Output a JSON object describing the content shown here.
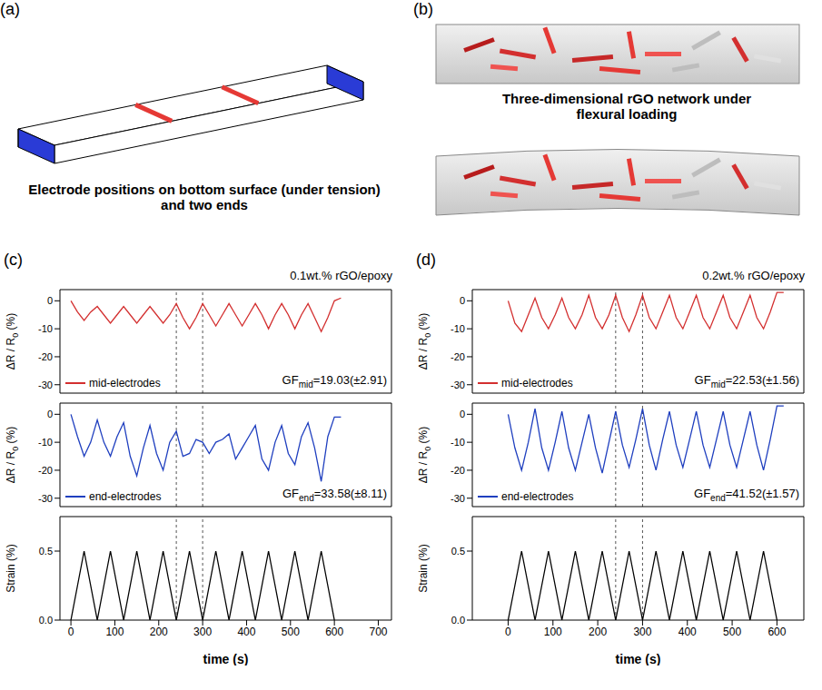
{
  "panels": [
    {
      "label": "(a)",
      "caption": "Electrode positions on bottom surface (under tension) and two ends"
    },
    {
      "label": "(b)",
      "caption": "Three-dimensional rGO network under flexural loading"
    }
  ],
  "chart_data": [
    {
      "type": "line",
      "label": "(c)",
      "title": "0.1wt.% rGO/epoxy",
      "xlabel": "time (s)",
      "xlim": [
        -25,
        730
      ],
      "xticks": [
        0,
        100,
        200,
        300,
        400,
        500,
        600,
        700
      ],
      "vlines": [
        240,
        300
      ],
      "x": [
        0,
        15,
        30,
        45,
        60,
        75,
        90,
        105,
        120,
        135,
        150,
        165,
        180,
        195,
        210,
        225,
        240,
        255,
        270,
        285,
        300,
        315,
        330,
        345,
        360,
        375,
        390,
        405,
        420,
        435,
        450,
        465,
        480,
        495,
        510,
        525,
        540,
        555,
        570,
        585,
        600,
        615
      ],
      "subplots": [
        {
          "ylabel": {
            "main": "ΔR / R",
            "sub": "0",
            "rest": " (%)"
          },
          "ylim": [
            -33,
            4
          ],
          "yticks": [
            -30,
            -20,
            -10,
            0
          ],
          "legend": "lower left",
          "annotation": {
            "main": "GF",
            "sub": "mid",
            "rest": "=19.03(±2.91)"
          },
          "series": [
            {
              "name": "mid-electrodes",
              "color": "#d32f2f",
              "values": [
                0,
                -4,
                -7,
                -4,
                -2,
                -5,
                -8,
                -5,
                -2,
                -5,
                -8,
                -5,
                -2,
                -5,
                -8,
                -5,
                -1,
                -6,
                -10,
                -6,
                -1,
                -5,
                -9,
                -5,
                -1,
                -5,
                -9,
                -5,
                -1,
                -5,
                -10,
                -5,
                -1,
                -5,
                -10,
                -5,
                -1,
                -6,
                -11,
                -6,
                0,
                1
              ]
            }
          ]
        },
        {
          "ylabel": {
            "main": "ΔR / R",
            "sub": "0",
            "rest": " (%)"
          },
          "ylim": [
            -33,
            4
          ],
          "yticks": [
            -30,
            -20,
            -10,
            0
          ],
          "legend": "lower left",
          "annotation": {
            "main": "GF",
            "sub": "end",
            "rest": "=33.58(±8.11)"
          },
          "series": [
            {
              "name": "end-electrodes",
              "color": "#1f3fbf",
              "values": [
                0,
                -8,
                -15,
                -10,
                -2,
                -10,
                -15,
                -8,
                -3,
                -15,
                -22,
                -12,
                -4,
                -14,
                -20,
                -10,
                -6,
                -15,
                -14,
                -9,
                -10,
                -14,
                -10,
                -9,
                -7,
                -16,
                -12,
                -8,
                -4,
                -16,
                -20,
                -10,
                -4,
                -14,
                -18,
                -8,
                -3,
                -12,
                -24,
                -8,
                -1,
                -1
              ]
            }
          ]
        },
        {
          "ylabel": {
            "main": "Strain (%)",
            "sub": "",
            "rest": ""
          },
          "ylim": [
            0,
            0.75
          ],
          "yticks": [
            {
              "value": 0,
              "label": "0.0"
            },
            0.5
          ],
          "series": [
            {
              "color": "#000000",
              "values": [
                0,
                0.25,
                0.5,
                0.25,
                0,
                0.25,
                0.5,
                0.25,
                0,
                0.25,
                0.5,
                0.25,
                0,
                0.25,
                0.5,
                0.25,
                0,
                0.25,
                0.5,
                0.25,
                0,
                0.25,
                0.5,
                0.25,
                0,
                0.25,
                0.5,
                0.25,
                0,
                0.25,
                0.5,
                0.25,
                0,
                0.25,
                0.5,
                0.25,
                0,
                0.25,
                0.5,
                0.25,
                0,
                null
              ]
            }
          ]
        }
      ]
    },
    {
      "type": "line",
      "label": "(d)",
      "title": "0.2wt.% rGO/epoxy",
      "xlabel": "time (s)",
      "xlim": [
        -80,
        660
      ],
      "xticks": [
        0,
        100,
        200,
        300,
        400,
        500,
        600
      ],
      "vlines": [
        240,
        300
      ],
      "x": [
        0,
        15,
        30,
        45,
        60,
        75,
        90,
        105,
        120,
        135,
        150,
        165,
        180,
        195,
        210,
        225,
        240,
        255,
        270,
        285,
        300,
        315,
        330,
        345,
        360,
        375,
        390,
        405,
        420,
        435,
        450,
        465,
        480,
        495,
        510,
        525,
        540,
        555,
        570,
        585,
        600,
        615
      ],
      "subplots": [
        {
          "ylabel": {
            "main": "ΔR / R",
            "sub": "0",
            "rest": " (%)"
          },
          "ylim": [
            -33,
            4
          ],
          "yticks": [
            -30,
            -20,
            -10,
            0
          ],
          "legend": "lower left",
          "annotation": {
            "main": "GF",
            "sub": "mid",
            "rest": "=22.53(±1.56)"
          },
          "series": [
            {
              "name": "mid-electrodes",
              "color": "#d32f2f",
              "values": [
                0,
                -8,
                -11,
                -5,
                1,
                -6,
                -10,
                -5,
                1,
                -6,
                -10,
                -5,
                2,
                -6,
                -10,
                -5,
                2,
                -6,
                -11,
                -5,
                2,
                -6,
                -10,
                -4,
                2,
                -6,
                -10,
                -4,
                2,
                -6,
                -10,
                -4,
                2,
                -6,
                -10,
                -4,
                2,
                -6,
                -10,
                -4,
                3,
                3
              ]
            }
          ]
        },
        {
          "ylabel": {
            "main": "ΔR / R",
            "sub": "0",
            "rest": " (%)"
          },
          "ylim": [
            -33,
            4
          ],
          "yticks": [
            -30,
            -20,
            -10,
            0
          ],
          "legend": "lower left",
          "annotation": {
            "main": "GF",
            "sub": "end",
            "rest": "=41.52(±1.57)"
          },
          "series": [
            {
              "name": "end-electrodes",
              "color": "#1f3fbf",
              "values": [
                0,
                -12,
                -20,
                -10,
                2,
                -12,
                -20,
                -10,
                1,
                -12,
                -20,
                -10,
                0,
                -12,
                -21,
                -10,
                1,
                -11,
                -19,
                -9,
                2,
                -11,
                -20,
                -9,
                1,
                -11,
                -19,
                -9,
                1,
                -11,
                -19,
                -9,
                1,
                -11,
                -19,
                -9,
                1,
                -11,
                -20,
                -9,
                3,
                3
              ]
            }
          ]
        },
        {
          "ylabel": {
            "main": "Strain (%)",
            "sub": "",
            "rest": ""
          },
          "ylim": [
            0,
            0.75
          ],
          "yticks": [
            {
              "value": 0,
              "label": "0.0"
            },
            0.5
          ],
          "series": [
            {
              "color": "#000000",
              "values": [
                0,
                0.25,
                0.5,
                0.25,
                0,
                0.25,
                0.5,
                0.25,
                0,
                0.25,
                0.5,
                0.25,
                0,
                0.25,
                0.5,
                0.25,
                0,
                0.25,
                0.5,
                0.25,
                0,
                0.25,
                0.5,
                0.25,
                0,
                0.25,
                0.5,
                0.25,
                0,
                0.25,
                0.5,
                0.25,
                0,
                0.25,
                0.5,
                0.25,
                0,
                0.25,
                0.5,
                0.25,
                0,
                null
              ]
            }
          ]
        }
      ]
    }
  ]
}
